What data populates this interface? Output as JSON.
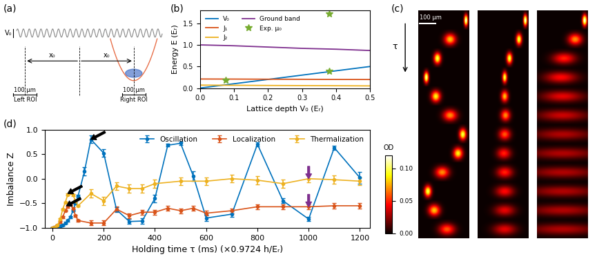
{
  "chart_data": [
    {
      "type": "line",
      "panel_label": "(b)",
      "x_label": "Lattice depth V₀ (Eᵣ)",
      "y_label": "Energy E (Eᵣ)",
      "xlim": [
        0,
        0.5
      ],
      "ylim": [
        0,
        1.8
      ],
      "xticks": [
        {
          "value": 0,
          "label": "0.0"
        },
        0.1,
        0.2,
        0.3,
        0.4,
        0.5
      ],
      "yticks": [
        {
          "value": 0,
          "label": "0.0"
        },
        0.5,
        {
          "value": 1,
          "label": "1.0"
        },
        1.5
      ],
      "legend": "upper left",
      "series": [
        {
          "name": "V₀",
          "color": "#0072BD",
          "line_style": "solid",
          "x": [
            0,
            0.1,
            0.2,
            0.3,
            0.4,
            0.5
          ],
          "values": [
            0,
            0.1,
            0.2,
            0.3,
            0.4,
            0.5
          ]
        },
        {
          "name": "J₁",
          "color": "#D95319",
          "line_style": "solid",
          "x": [
            0,
            0.1,
            0.2,
            0.3,
            0.4,
            0.5
          ],
          "values": [
            0.21,
            0.208,
            0.205,
            0.203,
            0.2,
            0.198
          ]
        },
        {
          "name": "J₂",
          "color": "#EDB120",
          "line_style": "solid",
          "x": [
            0,
            0.1,
            0.2,
            0.3,
            0.4,
            0.5
          ],
          "values": [
            0.068,
            0.064,
            0.06,
            0.057,
            0.054,
            0.05
          ]
        },
        {
          "name": "Ground band",
          "color": "#7E2F8E",
          "line_style": "solid",
          "x": [
            0,
            0.1,
            0.2,
            0.3,
            0.4,
            0.5
          ],
          "values": [
            1.0,
            0.98,
            0.95,
            0.92,
            0.9,
            0.87
          ]
        },
        {
          "name": "Exp. μ₀",
          "type": "scatter",
          "marker": "*",
          "color": "#77AC30",
          "x": [
            0.075,
            0.38,
            0.38
          ],
          "values": [
            0.18,
            0.4,
            1.72
          ]
        }
      ]
    },
    {
      "type": "line",
      "panel_label": "(d)",
      "x_label": "Holding time τ (ms) (×0.9724 h/Eᵣ)",
      "y_label": "Imbalance Z",
      "xlim": [
        -30,
        1240
      ],
      "ylim": [
        -1,
        1
      ],
      "xticks": [
        0,
        200,
        400,
        600,
        800,
        1000,
        1200
      ],
      "yticks": [
        {
          "value": -1,
          "label": "−1.0"
        },
        {
          "value": -0.5,
          "label": "−0.5"
        },
        {
          "value": 0,
          "label": "0.0"
        },
        0.5,
        {
          "value": 1,
          "label": "1.0"
        }
      ],
      "legend": "upper right",
      "marker": "o",
      "line_style": "solid",
      "series": [
        {
          "name": "Oscillation",
          "color": "#0072BD",
          "x": [
            0,
            10,
            20,
            30,
            40,
            50,
            60,
            70,
            80,
            90,
            100,
            125,
            150,
            200,
            250,
            300,
            350,
            400,
            450,
            500,
            550,
            600,
            700,
            800,
            900,
            1000,
            1100,
            1200
          ],
          "values": [
            -1.0,
            -0.99,
            -0.98,
            -0.96,
            -0.94,
            -0.9,
            -0.85,
            -0.78,
            -0.65,
            -0.5,
            -0.35,
            0.15,
            0.8,
            0.52,
            -0.63,
            -0.87,
            -0.86,
            -0.4,
            0.68,
            0.72,
            0.05,
            -0.8,
            -0.72,
            0.7,
            -0.45,
            -0.82,
            0.63,
            0.02
          ],
          "errors": [
            0.02,
            0.02,
            0.02,
            0.02,
            0.02,
            0.02,
            0.02,
            0.02,
            0.02,
            0.02,
            0.02,
            0.08,
            0.08,
            0.08,
            0.05,
            0.05,
            0.06,
            0.08,
            0.03,
            0.04,
            0.1,
            0.06,
            0.05,
            0.04,
            0.05,
            0.04,
            0.04,
            0.12
          ]
        },
        {
          "name": "Localization",
          "color": "#D95319",
          "x": [
            0,
            10,
            20,
            30,
            40,
            50,
            60,
            70,
            80,
            90,
            100,
            150,
            200,
            250,
            300,
            350,
            400,
            450,
            500,
            550,
            600,
            700,
            800,
            900,
            1000,
            1100,
            1200
          ],
          "values": [
            -1.0,
            -0.98,
            -0.95,
            -0.88,
            -0.78,
            -0.65,
            -0.57,
            -0.52,
            -0.6,
            -0.75,
            -0.85,
            -0.9,
            -0.9,
            -0.62,
            -0.75,
            -0.68,
            -0.68,
            -0.6,
            -0.65,
            -0.6,
            -0.7,
            -0.65,
            -0.57,
            -0.57,
            -0.57,
            -0.55,
            -0.55
          ],
          "errors": [
            0.02,
            0.02,
            0.02,
            0.02,
            0.02,
            0.02,
            0.02,
            0.02,
            0.02,
            0.02,
            0.02,
            0.05,
            0.05,
            0.05,
            0.05,
            0.05,
            0.05,
            0.05,
            0.05,
            0.05,
            0.05,
            0.05,
            0.05,
            0.05,
            0.05,
            0.05,
            0.05
          ]
        },
        {
          "name": "Thermalization",
          "color": "#EDB120",
          "x": [
            0,
            10,
            20,
            30,
            40,
            50,
            60,
            70,
            80,
            90,
            100,
            150,
            200,
            250,
            300,
            350,
            400,
            500,
            600,
            700,
            800,
            900,
            1000,
            1100,
            1200
          ],
          "values": [
            -1.0,
            -0.98,
            -0.95,
            -0.82,
            -0.62,
            -0.48,
            -0.32,
            -0.28,
            -0.33,
            -0.45,
            -0.55,
            -0.3,
            -0.45,
            -0.15,
            -0.2,
            -0.2,
            -0.1,
            -0.05,
            -0.05,
            0.0,
            -0.03,
            -0.1,
            0.0,
            -0.02,
            -0.05
          ],
          "errors": [
            0.02,
            0.02,
            0.02,
            0.02,
            0.02,
            0.02,
            0.02,
            0.02,
            0.02,
            0.02,
            0.02,
            0.08,
            0.08,
            0.08,
            0.08,
            0.08,
            0.08,
            0.08,
            0.08,
            0.08,
            0.08,
            0.08,
            0.08,
            0.08,
            0.08
          ]
        }
      ],
      "arrows": [
        {
          "x": 150,
          "y": 0.8,
          "color": "#000000"
        },
        {
          "x": 60,
          "y": -0.3,
          "color": "#000000"
        },
        {
          "x": 55,
          "y": -0.55,
          "color": "#000000"
        },
        {
          "x": 1000,
          "y": 0.0,
          "color": "#7E2F8E"
        },
        {
          "x": 1000,
          "y": -0.57,
          "color": "#7E2F8E"
        }
      ]
    }
  ],
  "schematic": {
    "panel_label": "(a)",
    "potential_label": "V₀",
    "roi_size": "100 μm",
    "left_roi": "Left ROI",
    "right_roi": "Right ROI",
    "distance_label": "x₀"
  },
  "images": {
    "panel_label": "(c)",
    "time_label": "τ",
    "scale_bar": {
      "length": 100,
      "label": "100 μm"
    },
    "xlim": [
      0,
      320
    ],
    "colorbar": {
      "label": "OD",
      "range": [
        0,
        0.12
      ],
      "ticks": [
        {
          "value": 0,
          "label": "0.00"
        },
        {
          "value": 0.05,
          "label": "0.05"
        },
        {
          "value": 0.1,
          "label": "0.10"
        }
      ]
    },
    "frames": [
      {
        "rows": [
          [
            300,
            8,
            0.12
          ],
          [
            200,
            25,
            0.08
          ],
          [
            120,
            15,
            0.1
          ],
          [
            50,
            10,
            0.11
          ],
          [
            110,
            20,
            0.09
          ],
          [
            200,
            30,
            0.07
          ],
          [
            280,
            15,
            0.1
          ],
          [
            250,
            20,
            0.09
          ],
          [
            150,
            30,
            0.07
          ],
          [
            60,
            15,
            0.1
          ],
          [
            100,
            25,
            0.08
          ],
          [
            180,
            35,
            0.06
          ]
        ]
      },
      {
        "rows": [
          [
            300,
            8,
            0.12
          ],
          [
            260,
            12,
            0.1
          ],
          [
            200,
            12,
            0.1
          ],
          [
            170,
            10,
            0.1
          ],
          [
            170,
            15,
            0.08
          ],
          [
            175,
            20,
            0.07
          ],
          [
            170,
            25,
            0.06
          ],
          [
            165,
            30,
            0.05
          ],
          [
            170,
            35,
            0.05
          ],
          [
            170,
            40,
            0.045
          ],
          [
            170,
            45,
            0.04
          ],
          [
            170,
            50,
            0.04
          ]
        ]
      },
      {
        "rows": [
          [
            300,
            10,
            0.12
          ],
          [
            240,
            30,
            0.07
          ],
          [
            170,
            50,
            0.05
          ],
          [
            150,
            70,
            0.045
          ],
          [
            160,
            90,
            0.04
          ],
          [
            160,
            110,
            0.035
          ],
          [
            160,
            130,
            0.03
          ],
          [
            160,
            150,
            0.03
          ],
          [
            160,
            150,
            0.03
          ],
          [
            160,
            150,
            0.03
          ],
          [
            160,
            150,
            0.03
          ],
          [
            160,
            150,
            0.03
          ]
        ]
      }
    ]
  }
}
